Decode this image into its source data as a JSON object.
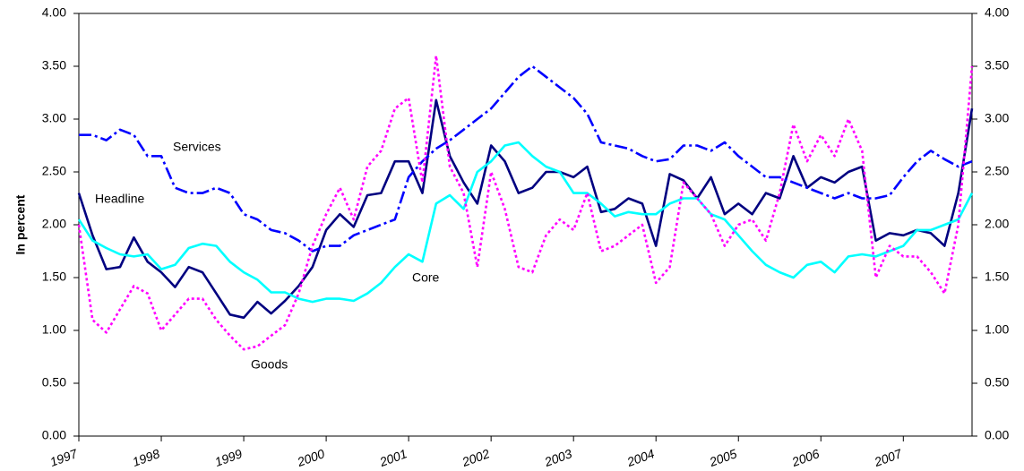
{
  "chart_data": {
    "type": "line",
    "ylabel": "In percent",
    "categories": [
      "1997",
      null,
      null,
      null,
      null,
      null,
      "1998",
      null,
      null,
      null,
      null,
      null,
      "1999",
      null,
      null,
      null,
      null,
      null,
      "2000",
      null,
      null,
      null,
      null,
      null,
      "2001",
      null,
      null,
      null,
      null,
      null,
      "2002",
      null,
      null,
      null,
      null,
      null,
      "2003",
      null,
      null,
      null,
      null,
      null,
      "2004",
      null,
      null,
      null,
      null,
      null,
      "2005",
      null,
      null,
      null,
      null,
      null,
      "2006",
      null,
      null,
      null,
      null,
      null,
      "2007",
      null,
      null,
      null,
      null,
      null
    ],
    "series": [
      {
        "name": "Headline",
        "color": "#000080",
        "style": "solid",
        "values": [
          2.3,
          1.9,
          1.58,
          1.6,
          1.88,
          1.65,
          1.55,
          1.41,
          1.6,
          1.55,
          1.35,
          1.15,
          1.12,
          1.27,
          1.16,
          1.28,
          1.42,
          1.6,
          1.95,
          2.1,
          1.98,
          2.28,
          2.3,
          2.6,
          2.6,
          2.3,
          3.18,
          2.65,
          2.4,
          2.2,
          2.75,
          2.6,
          2.3,
          2.35,
          2.5,
          2.5,
          2.45,
          2.55,
          2.12,
          2.15,
          2.25,
          2.2,
          1.8,
          2.48,
          2.42,
          2.25,
          2.45,
          2.1,
          2.2,
          2.1,
          2.3,
          2.25,
          2.65,
          2.35,
          2.45,
          2.4,
          2.5,
          2.55,
          1.85,
          1.92,
          1.9,
          1.95,
          1.92,
          1.8,
          2.3,
          3.1
        ]
      },
      {
        "name": "Core",
        "color": "#00ffff",
        "style": "solid",
        "values": [
          2.05,
          1.85,
          1.78,
          1.72,
          1.7,
          1.72,
          1.58,
          1.62,
          1.78,
          1.82,
          1.8,
          1.65,
          1.55,
          1.48,
          1.36,
          1.36,
          1.3,
          1.27,
          1.3,
          1.3,
          1.28,
          1.35,
          1.45,
          1.6,
          1.72,
          1.65,
          2.2,
          2.28,
          2.15,
          2.5,
          2.6,
          2.75,
          2.78,
          2.65,
          2.55,
          2.5,
          2.3,
          2.3,
          2.2,
          2.08,
          2.12,
          2.1,
          2.1,
          2.2,
          2.25,
          2.25,
          2.1,
          2.05,
          1.9,
          1.75,
          1.62,
          1.55,
          1.5,
          1.62,
          1.65,
          1.55,
          1.7,
          1.72,
          1.7,
          1.75,
          1.8,
          1.95,
          1.95,
          2.0,
          2.05,
          2.3
        ]
      },
      {
        "name": "Services",
        "color": "#0000ff",
        "style": "dashdot",
        "values": [
          2.85,
          2.85,
          2.8,
          2.9,
          2.85,
          2.65,
          2.65,
          2.35,
          2.3,
          2.3,
          2.35,
          2.3,
          2.1,
          2.05,
          1.95,
          1.92,
          1.85,
          1.75,
          1.8,
          1.8,
          1.9,
          1.95,
          2.0,
          2.05,
          2.45,
          2.6,
          2.72,
          2.8,
          2.9,
          3.0,
          3.1,
          3.25,
          3.4,
          3.5,
          3.4,
          3.3,
          3.2,
          3.05,
          2.78,
          2.75,
          2.72,
          2.65,
          2.6,
          2.62,
          2.75,
          2.75,
          2.7,
          2.78,
          2.65,
          2.55,
          2.45,
          2.45,
          2.4,
          2.35,
          2.3,
          2.25,
          2.3,
          2.25,
          2.25,
          2.28,
          2.45,
          2.6,
          2.7,
          2.62,
          2.55,
          2.6
        ]
      },
      {
        "name": "Goods",
        "color": "#ff00ff",
        "style": "dotted",
        "values": [
          2.0,
          1.1,
          0.98,
          1.2,
          1.42,
          1.35,
          1.0,
          1.15,
          1.3,
          1.3,
          1.1,
          0.95,
          0.82,
          0.85,
          0.95,
          1.05,
          1.35,
          1.8,
          2.1,
          2.35,
          2.05,
          2.55,
          2.7,
          3.1,
          3.2,
          2.4,
          3.6,
          2.55,
          2.3,
          1.6,
          2.5,
          2.15,
          1.6,
          1.55,
          1.9,
          2.05,
          1.95,
          2.3,
          1.75,
          1.8,
          1.9,
          2.0,
          1.45,
          1.6,
          2.4,
          2.25,
          2.1,
          1.8,
          2.0,
          2.05,
          1.85,
          2.3,
          2.95,
          2.6,
          2.85,
          2.65,
          3.0,
          2.7,
          1.5,
          1.8,
          1.7,
          1.7,
          1.55,
          1.35,
          2.0,
          3.5
        ]
      }
    ],
    "ylim": [
      0,
      4
    ],
    "yticks": [
      {
        "value": 0,
        "label": "0.00"
      },
      {
        "value": 0.5,
        "label": "0.50"
      },
      {
        "value": 1,
        "label": "1.00"
      },
      {
        "value": 1.5,
        "label": "1.50"
      },
      {
        "value": 2,
        "label": "2.00"
      },
      {
        "value": 2.5,
        "label": "2.50"
      },
      {
        "value": 3,
        "label": "3.00"
      },
      {
        "value": 3.5,
        "label": "3.50"
      },
      {
        "value": 4,
        "label": "4.00"
      }
    ],
    "y2lim": [
      0,
      4
    ],
    "y2ticks": [
      {
        "value": 0,
        "label": "0.00"
      },
      {
        "value": 0.5,
        "label": "0.50"
      },
      {
        "value": 1,
        "label": "1.00"
      },
      {
        "value": 1.5,
        "label": "1.50"
      },
      {
        "value": 2,
        "label": "2.00"
      },
      {
        "value": 2.5,
        "label": "2.50"
      },
      {
        "value": 3,
        "label": "3.00"
      },
      {
        "value": 3.5,
        "label": "3.50"
      },
      {
        "value": 4,
        "label": "4.00"
      }
    ],
    "grid": false
  }
}
